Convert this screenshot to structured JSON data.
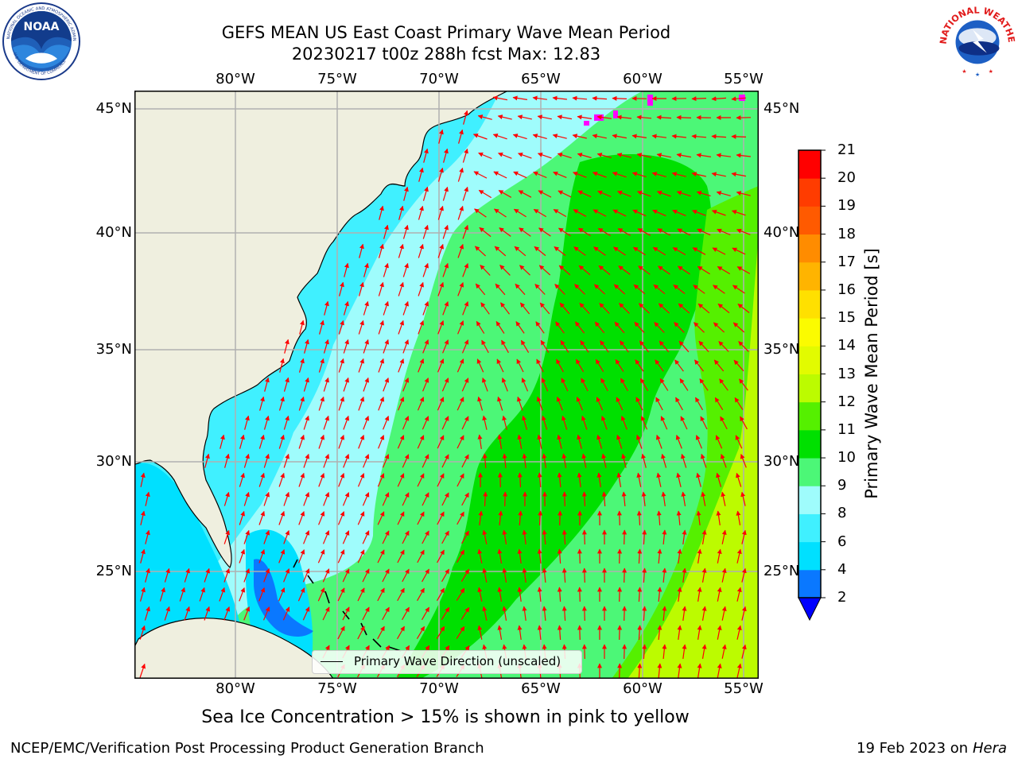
{
  "title": {
    "line1": "GEFS MEAN US East Coast Primary Wave Mean Period",
    "line2": "20230217 t00z 288h fcst   Max: 12.83"
  },
  "logos": {
    "left": "NOAA",
    "right": "NATIONAL WEATHER SERVICE"
  },
  "map": {
    "region": "US East Coast / Western North Atlantic",
    "lon_ticks": [
      "80°W",
      "75°W",
      "70°W",
      "65°W",
      "60°W",
      "55°W"
    ],
    "lat_ticks": [
      "45°N",
      "40°N",
      "35°N",
      "30°N",
      "25°N"
    ],
    "land_color": "#efefdf",
    "legend_label": "Primary Wave Direction (unscaled)",
    "arrow_color": "#ff0000"
  },
  "colorbar": {
    "label": "Primary Wave Mean Period [s]",
    "ticks": [
      "21",
      "20",
      "19",
      "18",
      "17",
      "16",
      "15",
      "14",
      "13",
      "12",
      "11",
      "10",
      "9",
      "8",
      "6",
      "4",
      "2"
    ],
    "levels": [
      2,
      4,
      6,
      8,
      9,
      10,
      11,
      12,
      13,
      14,
      15,
      16,
      17,
      18,
      19,
      20,
      21
    ],
    "colors": [
      "#0a78ff",
      "#00e0ff",
      "#40f0ff",
      "#9ffcfc",
      "#4cf777",
      "#00e000",
      "#55f000",
      "#bcfb00",
      "#e2fb00",
      "#fbfb00",
      "#ffe000",
      "#ffb400",
      "#ff8c00",
      "#ff5a00",
      "#ff3c00",
      "#ff0000"
    ],
    "under_color": "#0000ff"
  },
  "subtitle": "Sea Ice Concentration > 15% is shown in pink to yellow",
  "footer": {
    "left": "NCEP/EMC/Verification Post Processing Product Generation Branch",
    "right_date": "19 Feb 2023 on",
    "right_host": "Hera"
  }
}
